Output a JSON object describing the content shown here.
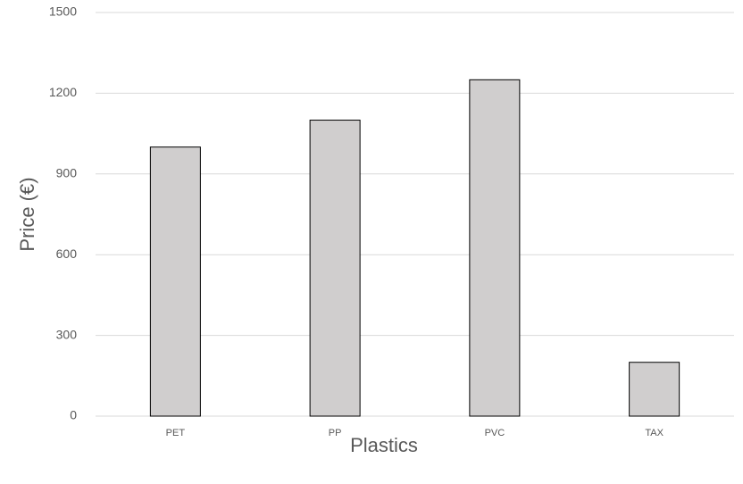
{
  "chart_data": {
    "type": "bar",
    "x_label": "Plastics",
    "y_label": "Price (€)",
    "categories": [
      "PET",
      "PP",
      "PVC",
      "TAX"
    ],
    "values": [
      1000,
      1100,
      1250,
      200
    ],
    "color": "#d0cece",
    "ylim": [
      0,
      1500
    ],
    "yticks": [
      0,
      300,
      600,
      900,
      1200,
      1500
    ],
    "grid": true
  }
}
